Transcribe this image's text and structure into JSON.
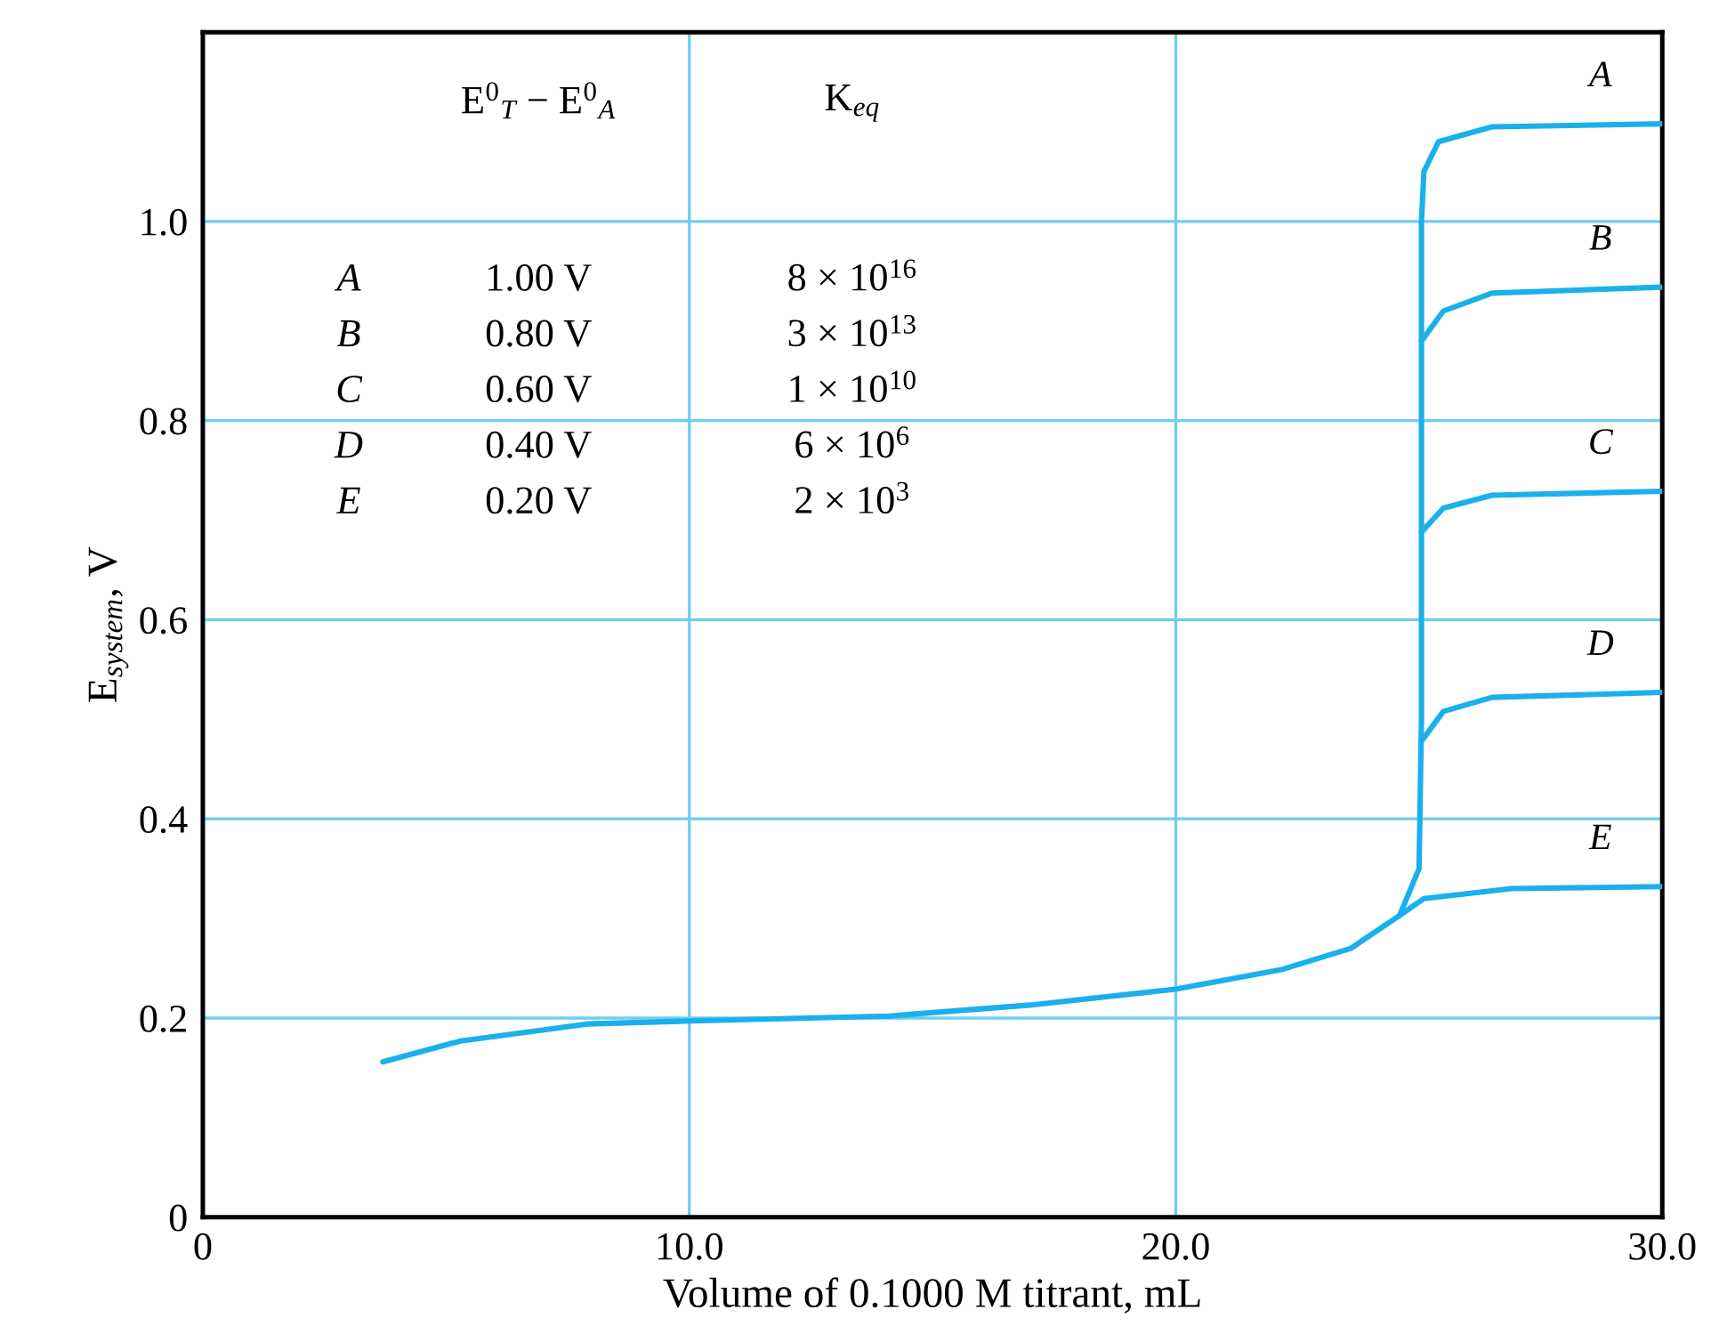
{
  "chart_data": {
    "type": "line",
    "xlabel": "Volume of 0.1000 M titrant, mL",
    "ylabel": "E$_{system}$, V",
    "xlim": [
      0,
      30
    ],
    "ylim": [
      0,
      1.19
    ],
    "xticks": [
      {
        "value": 0,
        "label": "0"
      },
      {
        "value": 10,
        "label": "10.0"
      },
      {
        "value": 20,
        "label": "20.0"
      },
      {
        "value": 30,
        "label": "30.0"
      }
    ],
    "yticks": [
      0,
      0.2,
      0.4,
      0.6,
      0.8,
      {
        "value": 1.0,
        "label": "1.0"
      }
    ],
    "grid": true,
    "legend": false,
    "marker": "none",
    "line_style": "solid",
    "series": [
      {
        "name": "A",
        "color": "#1ab0ec",
        "x": [
          3.7,
          5.3,
          7.9,
          10.0,
          14.1,
          17.0,
          20.0,
          22.2,
          23.6,
          24.6,
          25.0,
          25.05,
          25.05,
          25.1,
          25.4,
          26.5,
          30.0
        ],
        "values": [
          0.156,
          0.177,
          0.194,
          0.197,
          0.202,
          0.213,
          0.229,
          0.249,
          0.27,
          0.303,
          0.35,
          0.5,
          1.0,
          1.05,
          1.08,
          1.095,
          1.098
        ]
      },
      {
        "name": "B",
        "color": "#1ab0ec",
        "x": [
          25.05,
          25.5,
          26.5,
          30.0
        ],
        "values": [
          0.88,
          0.91,
          0.928,
          0.934
        ]
      },
      {
        "name": "C",
        "color": "#1ab0ec",
        "x": [
          25.05,
          25.5,
          26.5,
          30.0
        ],
        "values": [
          0.688,
          0.712,
          0.725,
          0.729
        ]
      },
      {
        "name": "D",
        "color": "#1ab0ec",
        "x": [
          25.05,
          25.5,
          26.5,
          30.0
        ],
        "values": [
          0.478,
          0.508,
          0.522,
          0.527
        ]
      },
      {
        "name": "E",
        "color": "#1ab0ec",
        "x": [
          24.6,
          25.1,
          26.9,
          30.0
        ],
        "values": [
          0.303,
          0.32,
          0.33,
          0.332
        ]
      }
    ],
    "annotations": [
      "E$^{0}$$_{T}$ − E$^{0}$$_{A}$",
      "K$_{eq}$",
      "A",
      "1.00 V",
      "8 × 10$^{16}$",
      "B",
      "0.80 V",
      "3 × 10$^{13}$",
      "C",
      "0.60 V",
      "1 × 10$^{10}$",
      "D",
      "0.40 V",
      "6 × 10$^{6}$",
      "E",
      "0.20 V",
      "2 × 10$^{3}$"
    ]
  }
}
